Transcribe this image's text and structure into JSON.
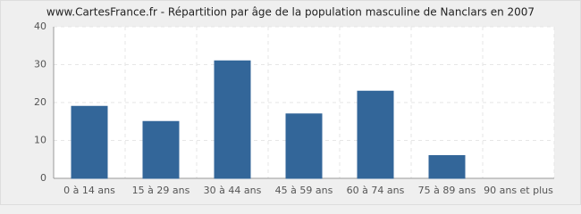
{
  "chart_data": {
    "type": "bar",
    "title": "www.CartesFrance.fr - Répartition par âge de la population masculine de Nanclars en 2007",
    "categories": [
      "0 à 14 ans",
      "15 à 29 ans",
      "30 à 44 ans",
      "45 à 59 ans",
      "60 à 74 ans",
      "75 à 89 ans",
      "90 ans et plus"
    ],
    "values": [
      19,
      15,
      31,
      17,
      23,
      6,
      0
    ],
    "color": "#336699",
    "ylim": [
      0,
      40
    ],
    "yticks": [
      0,
      10,
      20,
      30,
      40
    ],
    "grid": true
  }
}
